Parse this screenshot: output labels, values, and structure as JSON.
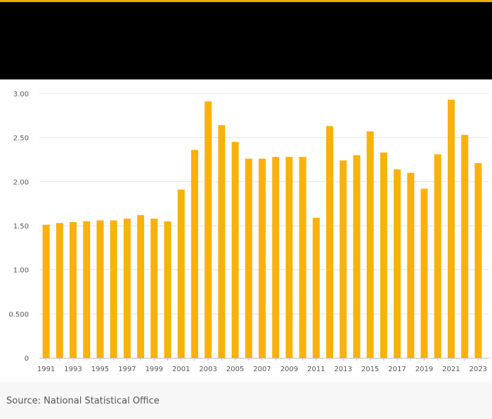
{
  "colors": {
    "accent": "#f5a800",
    "header_background": "#000000",
    "bar": "#f9b10b",
    "grid": "#e4e4e4",
    "axis_text": "#555555",
    "axis_line": "#bbbbbb"
  },
  "source": "Source: National Statistical Office",
  "chart_data": {
    "type": "bar",
    "title": "",
    "xlabel": "",
    "ylabel": "",
    "ylim": [
      0,
      3.0
    ],
    "yticks": [
      0,
      0.5,
      1.0,
      1.5,
      2.0,
      2.5,
      3.0
    ],
    "ytick_labels": [
      "0",
      "0.500",
      "1.00",
      "1.50",
      "2.00",
      "2.50",
      "3.00"
    ],
    "grid": true,
    "categories": [
      "1991",
      "1992",
      "1993",
      "1994",
      "1995",
      "1996",
      "1997",
      "1998",
      "1999",
      "2000",
      "2001",
      "2002",
      "2003",
      "2004",
      "2005",
      "2006",
      "2007",
      "2008",
      "2009",
      "2010",
      "2011",
      "2012",
      "2013",
      "2014",
      "2015",
      "2016",
      "2017",
      "2018",
      "2019",
      "2020",
      "2021",
      "2022",
      "2023"
    ],
    "xtick_labels": [
      "1991",
      "",
      "1993",
      "",
      "1995",
      "",
      "1997",
      "",
      "1999",
      "",
      "2001",
      "",
      "2003",
      "",
      "2005",
      "",
      "2007",
      "",
      "2009",
      "",
      "2011",
      "",
      "2013",
      "",
      "2015",
      "",
      "2017",
      "",
      "2019",
      "",
      "2021",
      "",
      "2023"
    ],
    "values": [
      1.51,
      1.53,
      1.54,
      1.55,
      1.56,
      1.56,
      1.58,
      1.62,
      1.58,
      1.55,
      1.91,
      2.36,
      2.91,
      2.64,
      2.45,
      2.26,
      2.26,
      2.28,
      2.28,
      2.28,
      1.59,
      2.63,
      2.24,
      2.3,
      2.57,
      2.33,
      2.14,
      2.1,
      1.92,
      2.31,
      2.93,
      2.53,
      2.21
    ]
  }
}
